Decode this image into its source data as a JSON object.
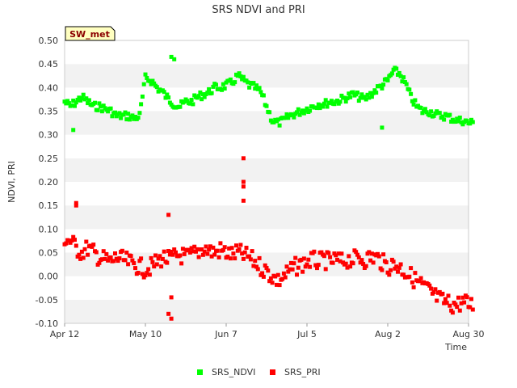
{
  "chart_data": {
    "type": "scatter",
    "title": "SRS NDVI and PRI",
    "xlabel": "Time",
    "ylabel": "NDVI, PRI",
    "badge": "SW_met",
    "xlim": [
      "2024-04-12",
      "2024-08-30"
    ],
    "ylim": [
      -0.1,
      0.5
    ],
    "x_ticks": [
      {
        "date": "2024-04-12",
        "label": "Apr 12"
      },
      {
        "date": "2024-05-10",
        "label": "May 10"
      },
      {
        "date": "2024-06-07",
        "label": "Jun 7"
      },
      {
        "date": "2024-07-05",
        "label": "Jul 5"
      },
      {
        "date": "2024-08-02",
        "label": "Aug 2"
      },
      {
        "date": "2024-08-30",
        "label": "Aug 30"
      }
    ],
    "y_ticks": [
      -0.1,
      -0.05,
      0.0,
      0.05,
      0.1,
      0.15,
      0.2,
      0.25,
      0.3,
      0.35,
      0.4,
      0.45,
      0.5
    ],
    "y_tick_labels": [
      "-0.10",
      "-0.05",
      "0.00",
      "0.05",
      "0.10",
      "0.15",
      "0.20",
      "0.25",
      "0.30",
      "0.35",
      "0.40",
      "0.45",
      "0.50"
    ],
    "grid": "horizontal bands",
    "legend_position": "bottom-center",
    "series": [
      {
        "name": "SRS_NDVI",
        "color": "#00ff00",
        "x": [
          "2024-04-12",
          "2024-04-14",
          "2024-04-16",
          "2024-04-18",
          "2024-04-20",
          "2024-04-22",
          "2024-04-24",
          "2024-04-26",
          "2024-04-28",
          "2024-04-30",
          "2024-05-02",
          "2024-05-04",
          "2024-05-06",
          "2024-05-08",
          "2024-05-10",
          "2024-05-12",
          "2024-05-14",
          "2024-05-16",
          "2024-05-18",
          "2024-05-20",
          "2024-05-22",
          "2024-05-24",
          "2024-05-26",
          "2024-05-28",
          "2024-05-30",
          "2024-06-01",
          "2024-06-03",
          "2024-06-05",
          "2024-06-07",
          "2024-06-09",
          "2024-06-11",
          "2024-06-13",
          "2024-06-15",
          "2024-06-17",
          "2024-06-19",
          "2024-06-21",
          "2024-06-23",
          "2024-06-25",
          "2024-06-27",
          "2024-06-29",
          "2024-07-01",
          "2024-07-03",
          "2024-07-05",
          "2024-07-07",
          "2024-07-09",
          "2024-07-11",
          "2024-07-13",
          "2024-07-15",
          "2024-07-17",
          "2024-07-19",
          "2024-07-21",
          "2024-07-23",
          "2024-07-25",
          "2024-07-27",
          "2024-07-29",
          "2024-07-31",
          "2024-08-02",
          "2024-08-04",
          "2024-08-06",
          "2024-08-08",
          "2024-08-10",
          "2024-08-12",
          "2024-08-14",
          "2024-08-16",
          "2024-08-18",
          "2024-08-20",
          "2024-08-22",
          "2024-08-24",
          "2024-08-26",
          "2024-08-28",
          "2024-08-30"
        ],
        "y": [
          0.37,
          0.36,
          0.37,
          0.38,
          0.37,
          0.36,
          0.36,
          0.355,
          0.35,
          0.34,
          0.34,
          0.34,
          0.335,
          0.34,
          0.42,
          0.415,
          0.4,
          0.39,
          0.375,
          0.365,
          0.36,
          0.37,
          0.37,
          0.38,
          0.385,
          0.39,
          0.4,
          0.4,
          0.405,
          0.41,
          0.425,
          0.415,
          0.405,
          0.4,
          0.39,
          0.36,
          0.33,
          0.325,
          0.33,
          0.34,
          0.345,
          0.35,
          0.355,
          0.36,
          0.365,
          0.365,
          0.37,
          0.37,
          0.375,
          0.38,
          0.385,
          0.38,
          0.375,
          0.385,
          0.395,
          0.405,
          0.415,
          0.435,
          0.43,
          0.41,
          0.38,
          0.36,
          0.35,
          0.35,
          0.345,
          0.34,
          0.34,
          0.335,
          0.33,
          0.33,
          0.325
        ]
      },
      {
        "name": "SRS_PRI",
        "color": "#ff0000",
        "x": [
          "2024-04-12",
          "2024-04-14",
          "2024-04-16",
          "2024-04-18",
          "2024-04-20",
          "2024-04-22",
          "2024-04-24",
          "2024-04-26",
          "2024-04-28",
          "2024-04-30",
          "2024-05-02",
          "2024-05-04",
          "2024-05-06",
          "2024-05-08",
          "2024-05-10",
          "2024-05-12",
          "2024-05-14",
          "2024-05-16",
          "2024-05-18",
          "2024-05-20",
          "2024-05-22",
          "2024-05-24",
          "2024-05-26",
          "2024-05-28",
          "2024-05-30",
          "2024-06-01",
          "2024-06-03",
          "2024-06-05",
          "2024-06-07",
          "2024-06-09",
          "2024-06-11",
          "2024-06-13",
          "2024-06-15",
          "2024-06-17",
          "2024-06-19",
          "2024-06-21",
          "2024-06-23",
          "2024-06-25",
          "2024-06-27",
          "2024-06-29",
          "2024-07-01",
          "2024-07-03",
          "2024-07-05",
          "2024-07-07",
          "2024-07-09",
          "2024-07-11",
          "2024-07-13",
          "2024-07-15",
          "2024-07-17",
          "2024-07-19",
          "2024-07-21",
          "2024-07-23",
          "2024-07-25",
          "2024-07-27",
          "2024-07-29",
          "2024-07-31",
          "2024-08-02",
          "2024-08-04",
          "2024-08-06",
          "2024-08-08",
          "2024-08-10",
          "2024-08-12",
          "2024-08-14",
          "2024-08-16",
          "2024-08-18",
          "2024-08-20",
          "2024-08-22",
          "2024-08-24",
          "2024-08-26",
          "2024-08-28",
          "2024-08-30"
        ],
        "y": [
          0.08,
          0.075,
          0.06,
          0.05,
          0.06,
          0.05,
          0.04,
          0.035,
          0.03,
          0.04,
          0.035,
          0.03,
          0.025,
          0.02,
          0.015,
          0.02,
          0.03,
          0.04,
          0.035,
          0.04,
          0.045,
          0.04,
          0.045,
          0.05,
          0.06,
          0.055,
          0.05,
          0.055,
          0.05,
          0.045,
          0.05,
          0.045,
          0.04,
          0.03,
          0.02,
          0.01,
          0.0,
          -0.01,
          0.0,
          0.01,
          0.02,
          0.025,
          0.03,
          0.035,
          0.03,
          0.035,
          0.03,
          0.035,
          0.03,
          0.035,
          0.035,
          0.04,
          0.035,
          0.04,
          0.04,
          0.03,
          0.02,
          0.025,
          0.02,
          0.01,
          0.0,
          -0.01,
          -0.02,
          -0.03,
          -0.04,
          -0.05,
          -0.055,
          -0.06,
          -0.06,
          -0.055,
          -0.06
        ]
      }
    ],
    "outliers": [
      {
        "series": "SRS_NDVI",
        "x": [
          "2024-04-15",
          "2024-05-19",
          "2024-05-20",
          "2024-07-31"
        ],
        "y": [
          0.31,
          0.465,
          0.46,
          0.315
        ]
      },
      {
        "series": "SRS_PRI",
        "x": [
          "2024-04-16",
          "2024-04-16",
          "2024-05-18",
          "2024-05-18",
          "2024-05-19",
          "2024-05-19",
          "2024-06-13",
          "2024-06-13",
          "2024-06-13",
          "2024-06-13"
        ],
        "y": [
          0.155,
          0.15,
          0.13,
          -0.08,
          -0.09,
          -0.045,
          0.25,
          0.2,
          0.19,
          0.16
        ]
      }
    ]
  }
}
